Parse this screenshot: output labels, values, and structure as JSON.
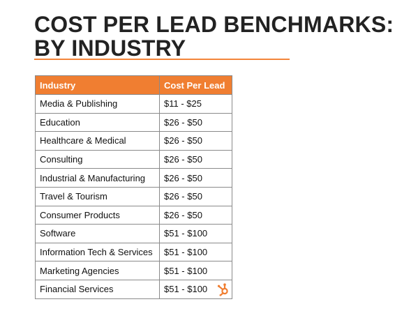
{
  "title": {
    "line1": "COST PER LEAD BENCHMARKS:",
    "line2": "BY INDUSTRY"
  },
  "table": {
    "headers": [
      "Industry",
      "Cost Per Lead"
    ],
    "rows": [
      {
        "industry": "Media & Publishing",
        "cost": "$11 - $25"
      },
      {
        "industry": "Education",
        "cost": "$26 - $50"
      },
      {
        "industry": "Healthcare & Medical",
        "cost": "$26 - $50"
      },
      {
        "industry": "Consulting",
        "cost": "$26 - $50"
      },
      {
        "industry": "Industrial & Manufacturing",
        "cost": "$26 - $50"
      },
      {
        "industry": "Travel & Tourism",
        "cost": "$26 - $50"
      },
      {
        "industry": "Consumer Products",
        "cost": "$26 - $50"
      },
      {
        "industry": "Software",
        "cost": "$51 - $100"
      },
      {
        "industry": "Information Tech & Services",
        "cost": "$51 - $100"
      },
      {
        "industry": "Marketing Agencies",
        "cost": "$51 - $100"
      },
      {
        "industry": "Financial Services",
        "cost": "$51 - $100"
      }
    ]
  },
  "colors": {
    "accent": "#f07e31",
    "title_text": "#222222",
    "border": "#8a8a8a"
  },
  "logo": {
    "icon": "hubspot-sprocket-icon"
  }
}
